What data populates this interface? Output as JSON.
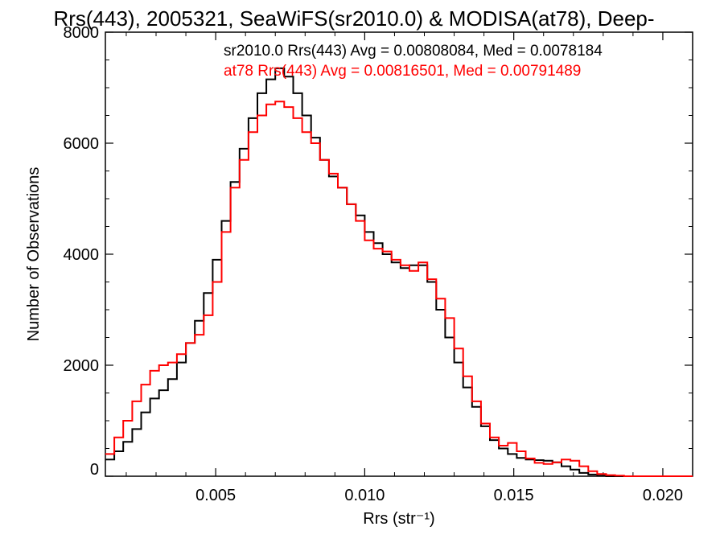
{
  "chart_data": {
    "type": "line",
    "title": "Rrs(443), 2005321, SeaWiFS(sr2010.0) & MODISA(at78), Deep-",
    "xlabel": "Rrs (str⁻¹)",
    "ylabel": "Number of Observations",
    "xlim": [
      0.0013,
      0.021
    ],
    "ylim": [
      0,
      8000
    ],
    "x_ticks": [
      0.005,
      0.01,
      0.015,
      0.02
    ],
    "x_tick_labels": [
      "0.005",
      "0.010",
      "0.015",
      "0.020"
    ],
    "y_ticks": [
      0,
      2000,
      4000,
      6000,
      8000
    ],
    "y_tick_labels": [
      "0",
      "2000",
      "4000",
      "6000",
      "8000"
    ],
    "grid": false,
    "legend_position": "top-right",
    "series": [
      {
        "name": "sr2010.0 Rrs(443) Avg = 0.00808084, Med = 0.0078184",
        "color": "#000000",
        "x": [
          0.0013,
          0.0016,
          0.0019,
          0.0022,
          0.0025,
          0.0028,
          0.0031,
          0.0034,
          0.0037,
          0.004,
          0.0043,
          0.0046,
          0.0049,
          0.0052,
          0.0055,
          0.0058,
          0.0061,
          0.0064,
          0.0067,
          0.007,
          0.0073,
          0.0076,
          0.0079,
          0.0082,
          0.0085,
          0.0088,
          0.0091,
          0.0094,
          0.0097,
          0.01,
          0.0103,
          0.0106,
          0.0109,
          0.0112,
          0.0115,
          0.0118,
          0.0121,
          0.0124,
          0.0127,
          0.013,
          0.0133,
          0.0136,
          0.0139,
          0.0142,
          0.0145,
          0.0148,
          0.0151,
          0.0154,
          0.0157,
          0.016,
          0.0163,
          0.0166,
          0.0169,
          0.0172,
          0.0175,
          0.0178,
          0.0181,
          0.0184,
          0.0187,
          0.019,
          0.0195,
          0.02,
          0.0205,
          0.021
        ],
        "y": [
          300,
          450,
          620,
          850,
          1150,
          1400,
          1550,
          1750,
          2050,
          2400,
          2800,
          3300,
          3900,
          4600,
          5300,
          5900,
          6450,
          6900,
          7150,
          7350,
          7200,
          6900,
          6500,
          6100,
          5700,
          5400,
          5200,
          4900,
          4700,
          4400,
          4200,
          4000,
          3850,
          3750,
          3800,
          3800,
          3500,
          3000,
          2500,
          2050,
          1600,
          1250,
          900,
          650,
          500,
          400,
          330,
          300,
          290,
          280,
          250,
          180,
          120,
          60,
          30,
          10,
          0,
          0,
          0,
          0,
          0,
          0,
          0,
          0
        ]
      },
      {
        "name": "at78 Rrs(443) Avg = 0.00816501, Med = 0.00791489",
        "color": "#ff0000",
        "x": [
          0.0013,
          0.0016,
          0.0019,
          0.0022,
          0.0025,
          0.0028,
          0.0031,
          0.0034,
          0.0037,
          0.004,
          0.0043,
          0.0046,
          0.0049,
          0.0052,
          0.0055,
          0.0058,
          0.0061,
          0.0064,
          0.0067,
          0.007,
          0.0073,
          0.0076,
          0.0079,
          0.0082,
          0.0085,
          0.0088,
          0.0091,
          0.0094,
          0.0097,
          0.01,
          0.0103,
          0.0106,
          0.0109,
          0.0112,
          0.0115,
          0.0118,
          0.0121,
          0.0124,
          0.0127,
          0.013,
          0.0133,
          0.0136,
          0.0139,
          0.0142,
          0.0145,
          0.0148,
          0.0151,
          0.0154,
          0.0157,
          0.016,
          0.0163,
          0.0166,
          0.0169,
          0.0172,
          0.0175,
          0.0178,
          0.0181,
          0.0184,
          0.0187,
          0.019,
          0.0195,
          0.02,
          0.0205,
          0.021
        ],
        "y": [
          400,
          700,
          1000,
          1350,
          1650,
          1900,
          2000,
          2050,
          2200,
          2400,
          2550,
          2900,
          3500,
          4400,
          5200,
          5700,
          6200,
          6500,
          6700,
          6750,
          6650,
          6450,
          6200,
          6000,
          5700,
          5450,
          5200,
          4900,
          4600,
          4250,
          4100,
          4050,
          3900,
          3800,
          3700,
          3850,
          3550,
          3200,
          2850,
          2300,
          1800,
          1350,
          950,
          700,
          550,
          600,
          450,
          320,
          240,
          220,
          250,
          300,
          280,
          180,
          90,
          40,
          20,
          10,
          0,
          0,
          0,
          0,
          0,
          0
        ]
      }
    ]
  }
}
